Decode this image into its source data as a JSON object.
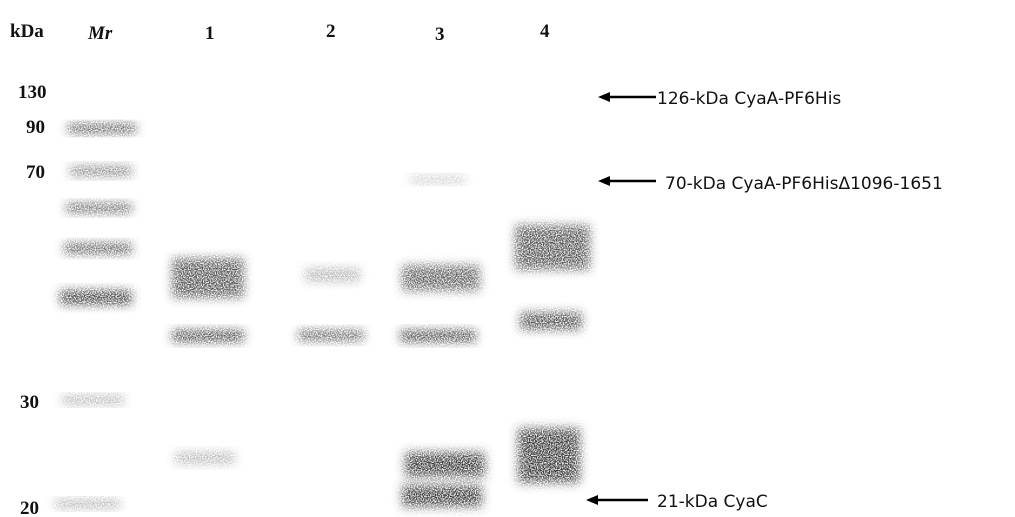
{
  "header": {
    "units": "kDa",
    "marker_lane": "Mr",
    "lanes": [
      "1",
      "2",
      "3",
      "4"
    ]
  },
  "markers": [
    "130",
    "90",
    "70",
    "30",
    "20"
  ],
  "annotations": [
    "126-kDa CyaA-PF6His",
    "70-kDa CyaA-PF6HisΔ1096-1651",
    "21-kDa CyaC"
  ]
}
